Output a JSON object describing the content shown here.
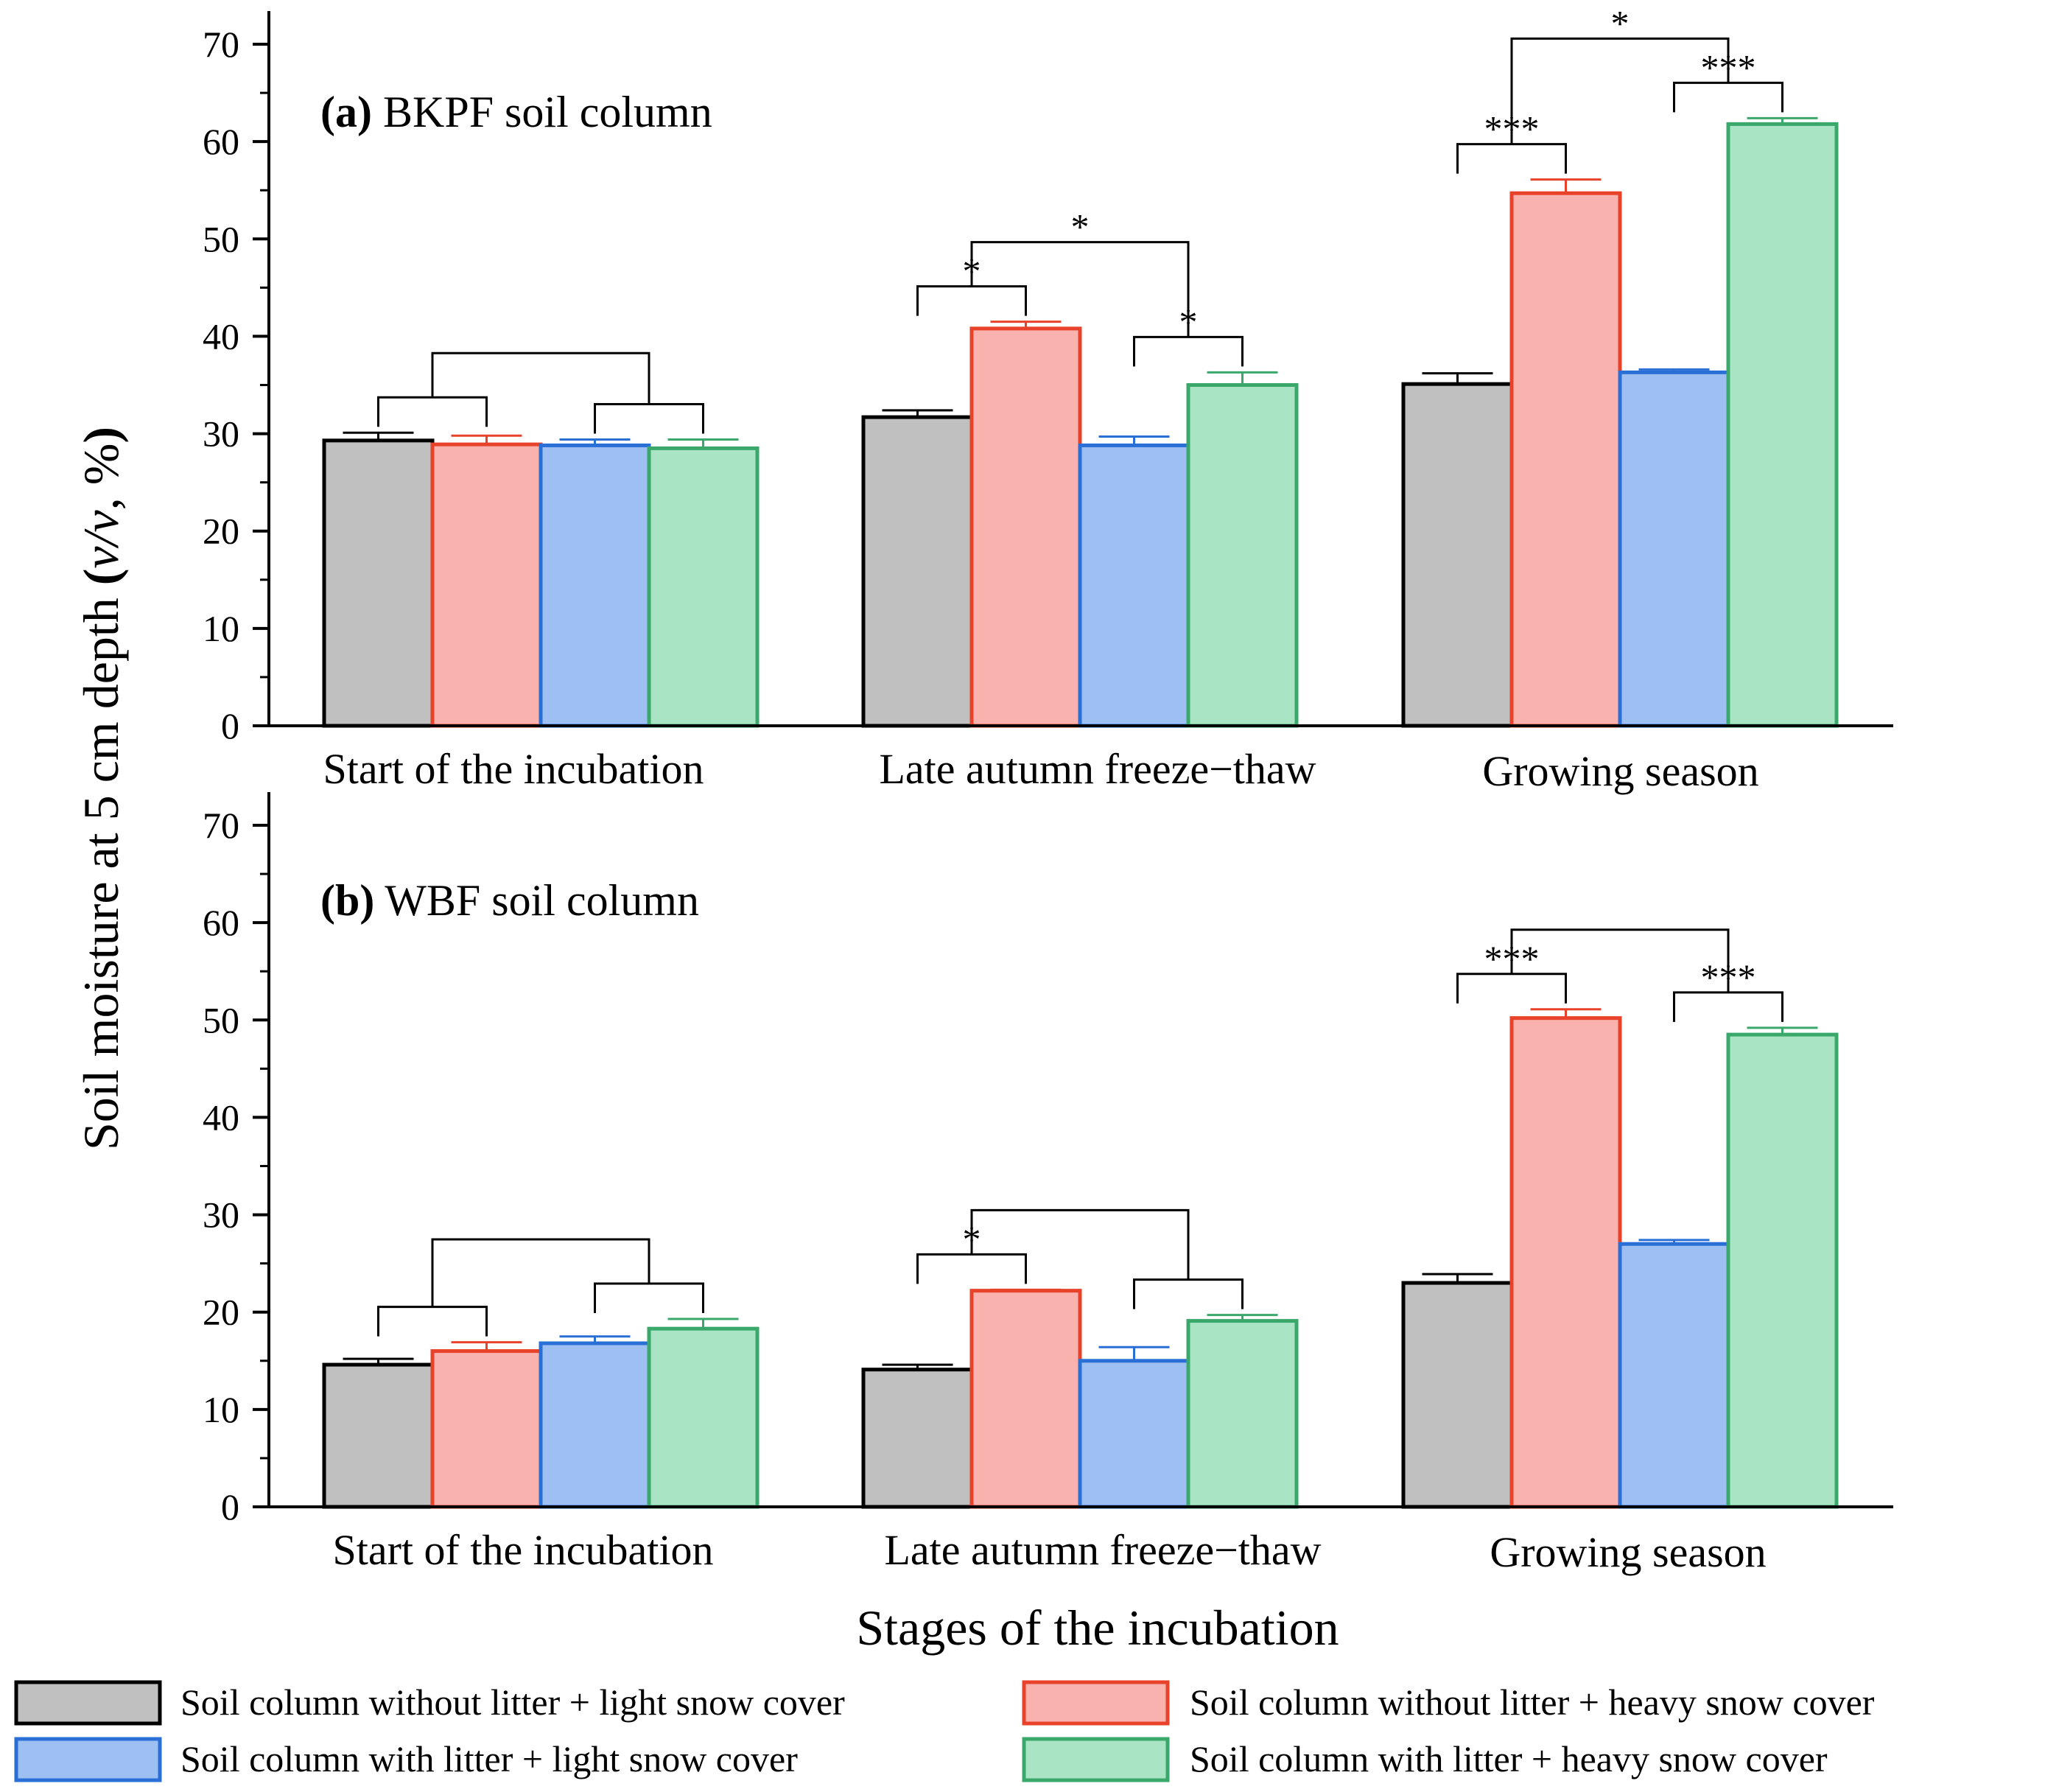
{
  "chart_data": {
    "type": "bar",
    "ylabel_parts": [
      "Soil moisture at 5 cm depth ",
      "(",
      "v/v",
      ", ",
      "%",
      ")"
    ],
    "xlabel": "Stages of the incubation",
    "ylim": [
      0,
      70
    ],
    "yticks": [
      "0",
      "10",
      "20",
      "30",
      "40",
      "50",
      "60",
      "70"
    ],
    "categories": [
      "Start of the incubation",
      "Late autumn freeze−thaw",
      "Growing season"
    ],
    "series": [
      {
        "name": "Soil column without litter + light snow cover",
        "fill": "#c0c0c0",
        "stroke": "#000000"
      },
      {
        "name": "Soil column without litter + heavy snow cover",
        "fill": "#f9b2ae",
        "stroke": "#e8422a"
      },
      {
        "name": "Soil column with litter + light snow cover",
        "fill": "#9dbff2",
        "stroke": "#2a6fd6"
      },
      {
        "name": "Soil column with litter + heavy snow cover",
        "fill": "#a9e5c4",
        "stroke": "#3aa86a"
      }
    ],
    "panels": [
      {
        "id": "a",
        "title_bold": "(a)",
        "title_rest": " BKPF soil column",
        "values": [
          [
            29.3,
            28.9,
            28.8,
            28.5
          ],
          [
            31.7,
            40.8,
            28.8,
            35.0
          ],
          [
            35.1,
            54.7,
            36.3,
            61.8
          ]
        ],
        "errors": [
          [
            0.8,
            0.9,
            0.6,
            0.9
          ],
          [
            0.7,
            0.7,
            0.9,
            1.3
          ],
          [
            1.1,
            1.4,
            0.3,
            0.6
          ]
        ],
        "brackets": [
          {
            "cat": 0,
            "pair": "left",
            "label": ""
          },
          {
            "cat": 0,
            "pair": "right",
            "label": ""
          },
          {
            "cat": 0,
            "pair": "top",
            "label": ""
          },
          {
            "cat": 1,
            "pair": "left",
            "label": "*"
          },
          {
            "cat": 1,
            "pair": "right",
            "label": "*"
          },
          {
            "cat": 1,
            "pair": "top",
            "label": "*"
          },
          {
            "cat": 2,
            "pair": "left",
            "label": "***"
          },
          {
            "cat": 2,
            "pair": "right",
            "label": "***"
          },
          {
            "cat": 2,
            "pair": "top",
            "label": "*"
          }
        ]
      },
      {
        "id": "b",
        "title_bold": "(b)",
        "title_rest": " WBF soil column",
        "values": [
          [
            14.6,
            16.0,
            16.8,
            18.3
          ],
          [
            14.1,
            22.2,
            15.0,
            19.1
          ],
          [
            23.0,
            50.2,
            27.0,
            48.5
          ]
        ],
        "errors": [
          [
            0.6,
            0.9,
            0.7,
            1.0
          ],
          [
            0.5,
            0.1,
            1.4,
            0.6
          ],
          [
            0.9,
            0.9,
            0.4,
            0.7
          ]
        ],
        "brackets": [
          {
            "cat": 0,
            "pair": "left",
            "label": ""
          },
          {
            "cat": 0,
            "pair": "right",
            "label": ""
          },
          {
            "cat": 0,
            "pair": "top",
            "label": ""
          },
          {
            "cat": 1,
            "pair": "left",
            "label": "*"
          },
          {
            "cat": 1,
            "pair": "right",
            "label": ""
          },
          {
            "cat": 1,
            "pair": "top",
            "label": ""
          },
          {
            "cat": 2,
            "pair": "left",
            "label": "***"
          },
          {
            "cat": 2,
            "pair": "right",
            "label": "***"
          },
          {
            "cat": 2,
            "pair": "top",
            "label": ""
          }
        ]
      }
    ]
  }
}
